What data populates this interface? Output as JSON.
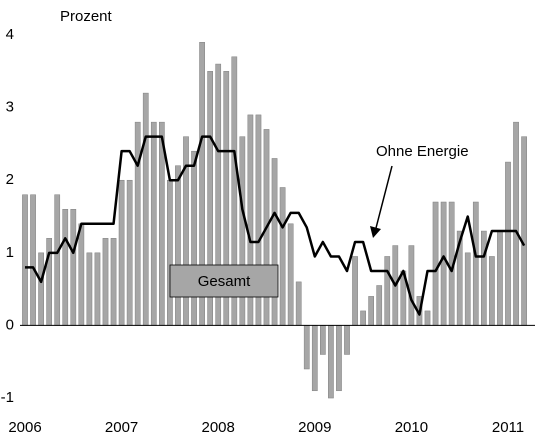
{
  "chart_data": {
    "type": "bar",
    "y_label": "Prozent",
    "categories": [
      "2006",
      null,
      null,
      null,
      null,
      null,
      null,
      null,
      null,
      null,
      null,
      null,
      "2007",
      null,
      null,
      null,
      null,
      null,
      null,
      null,
      null,
      null,
      null,
      null,
      "2008",
      null,
      null,
      null,
      null,
      null,
      null,
      null,
      null,
      null,
      null,
      null,
      "2009",
      null,
      null,
      null,
      null,
      null,
      null,
      null,
      null,
      null,
      null,
      null,
      "2010",
      null,
      null,
      null,
      null,
      null,
      null,
      null,
      null,
      null,
      null,
      null,
      "2011",
      null,
      null
    ],
    "series": [
      {
        "name": "Gesamt",
        "type": "bar",
        "color": "#a6a6a6",
        "values": [
          1.8,
          1.8,
          1.0,
          1.2,
          1.8,
          1.6,
          1.6,
          1.4,
          1.0,
          1.0,
          1.2,
          1.2,
          2.0,
          2.0,
          2.8,
          3.2,
          2.8,
          2.8,
          2.0,
          2.2,
          2.6,
          2.4,
          3.9,
          3.5,
          3.6,
          3.5,
          3.7,
          2.6,
          2.9,
          2.9,
          2.7,
          2.3,
          1.9,
          1.4,
          0.6,
          -0.6,
          -0.9,
          -0.4,
          -1.0,
          -0.9,
          -0.4,
          0.95,
          0.2,
          0.4,
          0.55,
          0.95,
          1.1,
          0.75,
          1.1,
          0.4,
          0.2,
          1.7,
          1.7,
          1.7,
          1.3,
          1.0,
          1.7,
          1.3,
          0.95,
          1.3,
          2.25,
          2.8,
          2.6
        ]
      },
      {
        "name": "Ohne Energie",
        "type": "line",
        "color": "#000000",
        "values": [
          0.8,
          0.8,
          0.6,
          1.0,
          1.0,
          1.2,
          1.0,
          1.4,
          1.4,
          1.4,
          1.4,
          1.4,
          2.4,
          2.4,
          2.2,
          2.6,
          2.6,
          2.6,
          2.0,
          2.0,
          2.2,
          2.2,
          2.6,
          2.6,
          2.4,
          2.4,
          2.4,
          1.6,
          1.15,
          1.15,
          1.35,
          1.55,
          1.35,
          1.55,
          1.55,
          1.35,
          0.95,
          1.15,
          0.95,
          0.95,
          0.75,
          1.15,
          1.15,
          0.75,
          0.75,
          0.75,
          0.55,
          0.75,
          0.35,
          0.15,
          0.75,
          0.75,
          0.95,
          0.75,
          1.15,
          1.5,
          0.95,
          0.95,
          1.3,
          1.3,
          1.3,
          1.3,
          1.1
        ]
      }
    ],
    "ylim": [
      -1.1,
      4.2
    ],
    "yticks": [
      -1,
      0,
      1,
      2,
      3,
      4
    ],
    "grid": false
  }
}
